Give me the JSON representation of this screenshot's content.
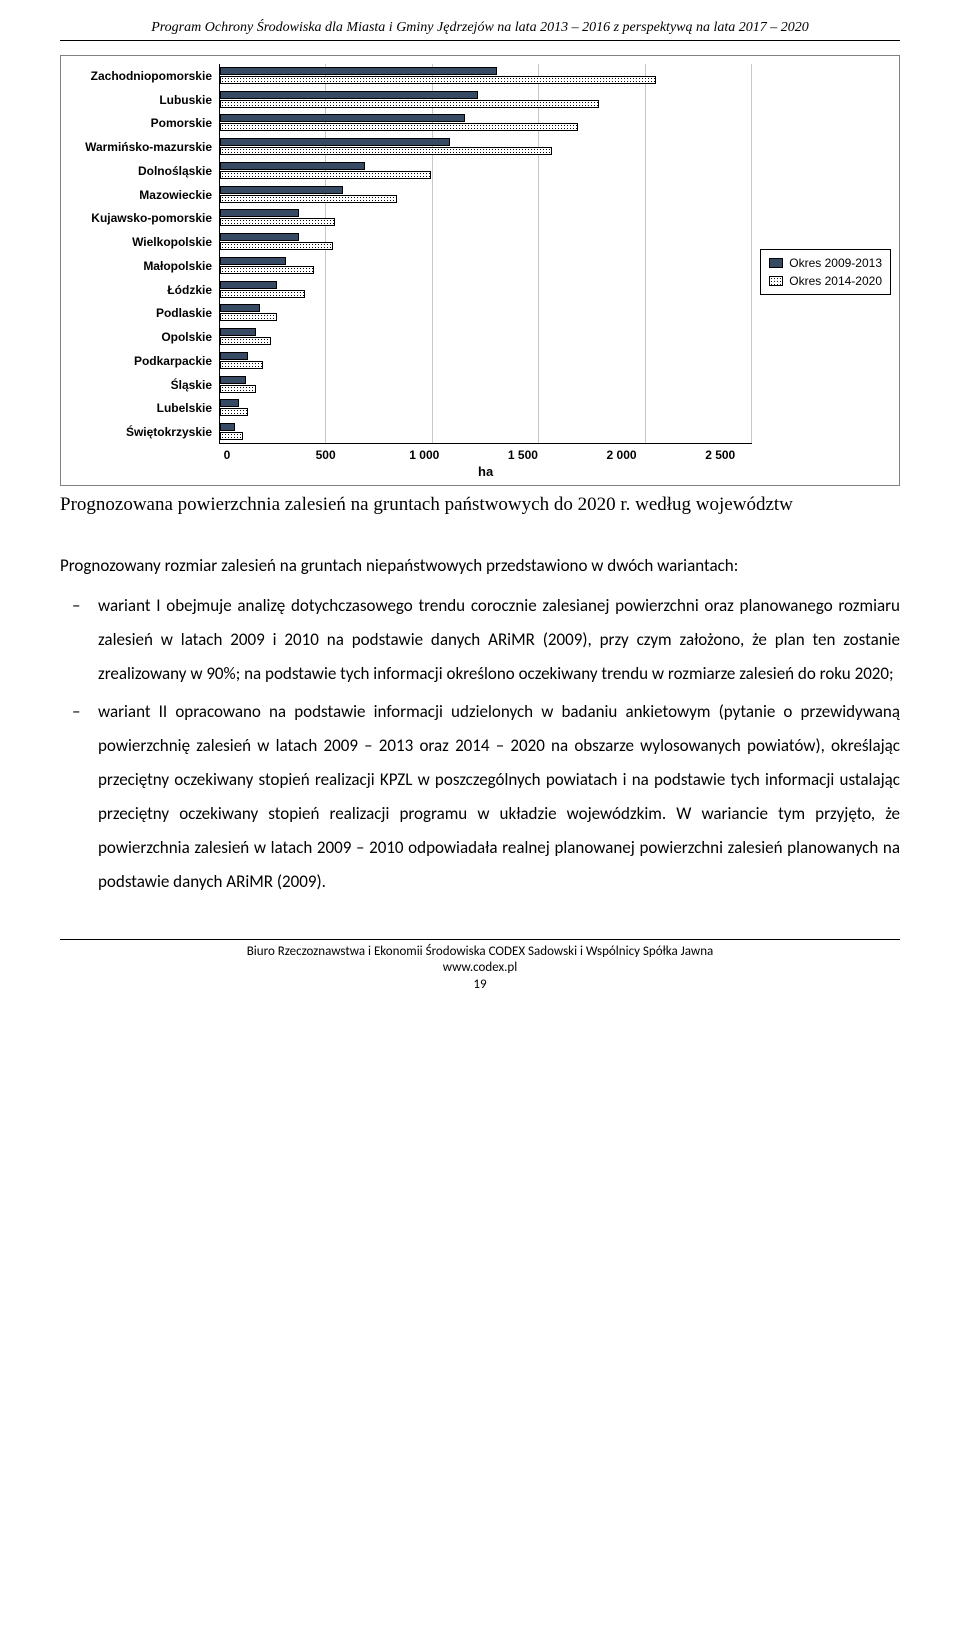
{
  "header": {
    "title": "Program Ochrony Środowiska dla Miasta i Gminy Jędrzejów na lata 2013 – 2016 z perspektywą na lata 2017 – 2020"
  },
  "chart": {
    "type": "bar",
    "orientation": "horizontal",
    "xlabel": "ha",
    "xmax": 2500,
    "xticks": [
      0,
      500,
      1000,
      1500,
      2000,
      2500
    ],
    "xtick_labels": [
      "0",
      "500",
      "1 000",
      "1 500",
      "2 000",
      "2 500"
    ],
    "legend": [
      {
        "label": "Okres 2009-2013",
        "style": "solid",
        "color": "#374a63"
      },
      {
        "label": "Okres 2014-2020",
        "style": "hatch",
        "color": "#ffffff"
      }
    ],
    "categories": [
      {
        "name": "Zachodniopomorskie",
        "s1": 1300,
        "s2": 2050
      },
      {
        "name": "Lubuskie",
        "s1": 1210,
        "s2": 1780
      },
      {
        "name": "Pomorskie",
        "s1": 1150,
        "s2": 1680
      },
      {
        "name": "Warmińsko-mazurskie",
        "s1": 1080,
        "s2": 1560
      },
      {
        "name": "Dolnośląskie",
        "s1": 680,
        "s2": 990
      },
      {
        "name": "Mazowieckie",
        "s1": 580,
        "s2": 830
      },
      {
        "name": "Kujawsko-pomorskie",
        "s1": 370,
        "s2": 540
      },
      {
        "name": "Wielkopolskie",
        "s1": 370,
        "s2": 530
      },
      {
        "name": "Małopolskie",
        "s1": 310,
        "s2": 440
      },
      {
        "name": "Łódzkie",
        "s1": 270,
        "s2": 400
      },
      {
        "name": "Podlaskie",
        "s1": 190,
        "s2": 270
      },
      {
        "name": "Opolskie",
        "s1": 170,
        "s2": 240
      },
      {
        "name": "Podkarpackie",
        "s1": 130,
        "s2": 200
      },
      {
        "name": "Śląskie",
        "s1": 120,
        "s2": 170
      },
      {
        "name": "Lubelskie",
        "s1": 90,
        "s2": 130
      },
      {
        "name": "Świętokrzyskie",
        "s1": 70,
        "s2": 110
      }
    ],
    "grid_color": "#c8c8c8",
    "border_color": "#808080",
    "label_font": "Arial",
    "label_fontsize": 12,
    "label_fontweight": "bold"
  },
  "caption": "Prognozowana powierzchnia zalesień na gruntach państwowych do 2020 r. według województw",
  "body": {
    "intro": "Prognozowany rozmiar zalesień na gruntach niepaństwowych przedstawiono w dwóch wariantach:",
    "items": [
      "wariant I obejmuje analizę dotychczasowego trendu corocznie zalesianej powierzchni oraz planowanego rozmiaru zalesień w latach 2009 i 2010 na podstawie danych ARiMR (2009), przy czym założono, że plan ten zostanie zrealizowany w 90%; na podstawie tych informacji określono oczekiwany trendu w rozmiarze zalesień do roku 2020;",
      "wariant II opracowano na podstawie informacji udzielonych w badaniu ankietowym (pytanie o przewidywaną powierzchnię zalesień w latach 2009 – 2013 oraz 2014 – 2020 na obszarze wylosowanych powiatów), określając przeciętny oczekiwany stopień realizacji KPZL w poszczególnych powiatach i na podstawie tych informacji ustalając przeciętny oczekiwany stopień realizacji programu w układzie wojewódzkim. W wariancie tym przyjęto, że powierzchnia zalesień w latach 2009 – 2010 odpowiadała realnej planowanej powierzchni zalesień planowanych na podstawie danych ARiMR (2009)."
    ]
  },
  "footer": {
    "line1": "Biuro Rzeczoznawstwa i Ekonomii Środowiska CODEX Sadowski i Wspólnicy Spółka Jawna",
    "line2": "www.codex.pl",
    "page": "19"
  }
}
